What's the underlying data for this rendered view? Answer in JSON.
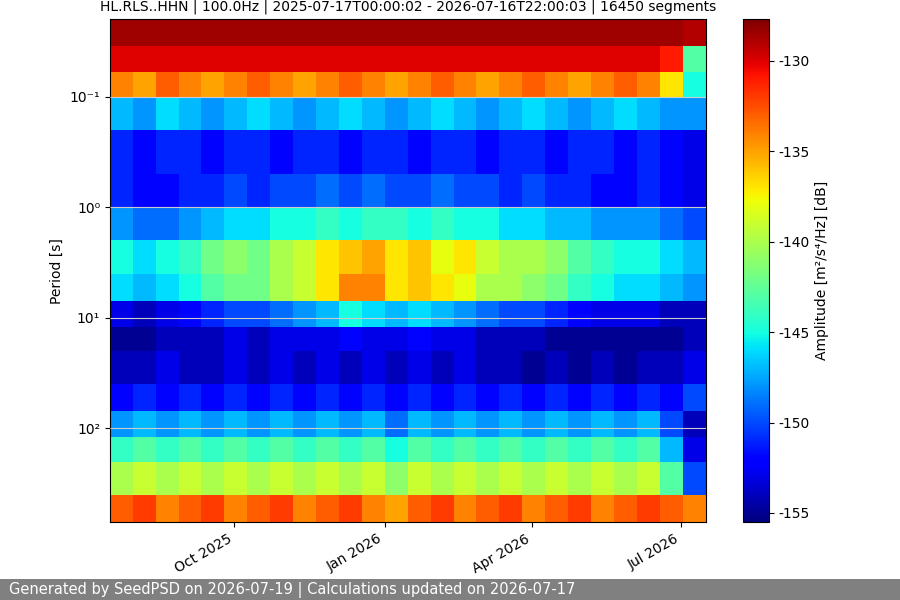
{
  "chart_data": {
    "type": "heatmap",
    "title": "HL.RLS..HHN | 100.0Hz | 2025-07-17T00:00:02 - 2026-07-16T22:00:03 | 16450 segments",
    "y_label": "Period [s]",
    "footer": "Generated by SeedPSD on 2026-07-19 | Calculations updated on 2026-07-17",
    "log": "y",
    "grid": "y",
    "color": "jet",
    "xlim": [
      "2025-07-17",
      "2026-07-16"
    ],
    "xticks": [
      {
        "value": "2025-10-01",
        "label": "Oct 2025"
      },
      {
        "value": "2026-01-01",
        "label": "Jan 2026"
      },
      {
        "value": "2026-04-01",
        "label": "Apr 2026"
      },
      {
        "value": "2026-07-01",
        "label": "Jul 2026"
      }
    ],
    "ylim": [
      700,
      0.02
    ],
    "yticks": [
      {
        "value": 0.1,
        "label": "10⁻¹"
      },
      {
        "value": 1,
        "label": "10⁰"
      },
      {
        "value": 10,
        "label": "10¹"
      },
      {
        "value": 100,
        "label": "10²"
      }
    ],
    "colorbar_label": "Amplitude [m²/s⁴/Hz] [dB]",
    "colorbar_lim": [
      -155.5,
      -127.7
    ],
    "colorbar_ticks": [
      -155,
      -150,
      -145,
      -140,
      -135,
      -130
    ],
    "x_edges": [
      "2025-07-17",
      "2025-07-31",
      "2025-08-14",
      "2025-08-28",
      "2025-09-11",
      "2025-09-25",
      "2025-10-09",
      "2025-10-23",
      "2025-11-06",
      "2025-11-20",
      "2025-12-04",
      "2025-12-18",
      "2026-01-01",
      "2026-01-15",
      "2026-01-29",
      "2026-02-12",
      "2026-02-26",
      "2026-03-12",
      "2026-03-26",
      "2026-04-09",
      "2026-04-23",
      "2026-05-07",
      "2026-05-21",
      "2026-06-04",
      "2026-06-18",
      "2026-07-02",
      "2026-07-16"
    ],
    "period_edges": [
      0.02,
      0.035,
      0.06,
      0.1,
      0.2,
      0.5,
      1,
      2,
      4,
      7,
      12,
      20,
      40,
      70,
      120,
      200,
      400,
      700
    ],
    "cells": [
      [
        -128.5,
        -128.5,
        -128.5,
        -128.5,
        -128.5,
        -128.5,
        -128.5,
        -128.5,
        -128.5,
        -128.5,
        -128.5,
        -128.5,
        -128.5,
        -128.5,
        -128.5,
        -128.5,
        -128.5,
        -128.5,
        -128.5,
        -128.5,
        -128.5,
        -128.5,
        -128.5,
        -128.5,
        -128.5,
        -129
      ],
      [
        -130,
        -130,
        -130,
        -130,
        -130,
        -130,
        -130,
        -130,
        -130,
        -130,
        -130,
        -130,
        -130,
        -130,
        -130,
        -130,
        -130,
        -130,
        -130,
        -130,
        -130,
        -130,
        -130,
        -130,
        -131,
        -143
      ],
      [
        -134,
        -135,
        -133,
        -134,
        -135,
        -134,
        -133,
        -134,
        -135,
        -134,
        -133,
        -134,
        -135,
        -134,
        -133,
        -134,
        -135,
        -134,
        -133,
        -134,
        -135,
        -134,
        -133,
        -134,
        -137,
        -145
      ],
      [
        -147,
        -148,
        -146,
        -147,
        -148,
        -147,
        -146,
        -147,
        -148,
        -147,
        -146,
        -147,
        -148,
        -147,
        -146,
        -147,
        -148,
        -147,
        -146,
        -147,
        -148,
        -147,
        -146,
        -147,
        -148,
        -148
      ],
      [
        -151,
        -152,
        -151,
        -151,
        -152,
        -151,
        -151,
        -152,
        -151,
        -151,
        -152,
        -151,
        -151,
        -152,
        -151,
        -151,
        -152,
        -151,
        -151,
        -152,
        -151,
        -151,
        -152,
        -151,
        -152,
        -153
      ],
      [
        -151,
        -152,
        -152,
        -151,
        -151,
        -150,
        -151,
        -150,
        -150,
        -149,
        -150,
        -149,
        -150,
        -150,
        -149,
        -150,
        -150,
        -151,
        -150,
        -151,
        -151,
        -152,
        -152,
        -151,
        -152,
        -153
      ],
      [
        -148,
        -149,
        -149,
        -148,
        -147,
        -146,
        -146,
        -145,
        -145,
        -144,
        -145,
        -144,
        -144,
        -145,
        -144,
        -145,
        -145,
        -146,
        -146,
        -147,
        -147,
        -148,
        -148,
        -148,
        -149,
        -150
      ],
      [
        -145,
        -146,
        -145,
        -144,
        -142,
        -141,
        -142,
        -140,
        -139,
        -137,
        -136,
        -135,
        -137,
        -136,
        -138,
        -137,
        -139,
        -140,
        -140,
        -141,
        -143,
        -144,
        -145,
        -145,
        -146,
        -147
      ],
      [
        -146,
        -147,
        -146,
        -145,
        -143,
        -142,
        -142,
        -140,
        -139,
        -137,
        -134,
        -134,
        -137,
        -136,
        -137,
        -138,
        -140,
        -140,
        -141,
        -142,
        -144,
        -145,
        -146,
        -146,
        -147,
        -148
      ],
      [
        -153,
        -154,
        -153,
        -152,
        -151,
        -150,
        -150,
        -149,
        -148,
        -147,
        -145,
        -146,
        -147,
        -146,
        -147,
        -148,
        -149,
        -150,
        -150,
        -151,
        -152,
        -153,
        -153,
        -153,
        -154,
        -154
      ],
      [
        -155,
        -155,
        -154,
        -154,
        -154,
        -153,
        -154,
        -153,
        -153,
        -153,
        -152,
        -153,
        -153,
        -152,
        -153,
        -153,
        -154,
        -154,
        -154,
        -155,
        -155,
        -155,
        -155,
        -155,
        -155,
        -154
      ],
      [
        -154,
        -154,
        -153,
        -154,
        -154,
        -153,
        -154,
        -153,
        -154,
        -153,
        -154,
        -153,
        -154,
        -153,
        -154,
        -153,
        -154,
        -154,
        -155,
        -154,
        -155,
        -154,
        -155,
        -154,
        -154,
        -153
      ],
      [
        -152,
        -151,
        -152,
        -151,
        -152,
        -151,
        -152,
        -151,
        -152,
        -151,
        -152,
        -151,
        -152,
        -151,
        -152,
        -151,
        -152,
        -151,
        -152,
        -151,
        -152,
        -151,
        -152,
        -151,
        -152,
        -150
      ],
      [
        -148,
        -147,
        -148,
        -147,
        -148,
        -147,
        -148,
        -147,
        -148,
        -147,
        -148,
        -147,
        -149,
        -147,
        -148,
        -147,
        -148,
        -147,
        -148,
        -147,
        -148,
        -147,
        -148,
        -147,
        -150,
        -154
      ],
      [
        -144,
        -143,
        -144,
        -143,
        -144,
        -143,
        -144,
        -143,
        -144,
        -143,
        -144,
        -143,
        -145,
        -143,
        -144,
        -143,
        -144,
        -143,
        -144,
        -143,
        -144,
        -143,
        -144,
        -143,
        -147,
        -153
      ],
      [
        -140,
        -139,
        -140,
        -139,
        -140,
        -139,
        -140,
        -139,
        -140,
        -139,
        -140,
        -139,
        -141,
        -139,
        -140,
        -139,
        -140,
        -139,
        -140,
        -139,
        -140,
        -139,
        -140,
        -139,
        -143,
        -150
      ],
      [
        -133,
        -132,
        -134,
        -133,
        -132,
        -134,
        -133,
        -132,
        -134,
        -133,
        -132,
        -134,
        -135,
        -133,
        -132,
        -134,
        -133,
        -132,
        -134,
        -133,
        -132,
        -134,
        -133,
        -132,
        -133,
        -134
      ]
    ]
  }
}
